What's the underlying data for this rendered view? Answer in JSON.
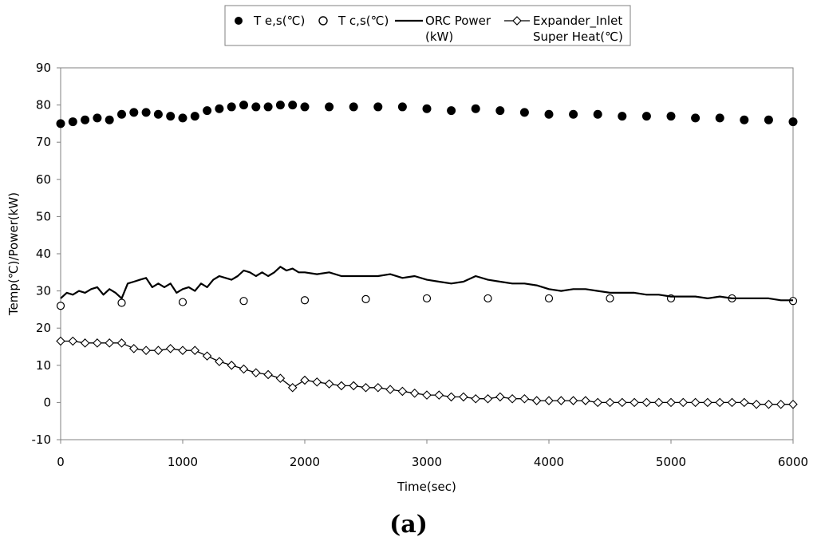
{
  "chart_data": {
    "type": "line",
    "title": "",
    "panel_label": "(a)",
    "xlabel": "Time(sec)",
    "ylabel": "Temp(℃)/Power(kW)",
    "xlim": [
      0,
      6000
    ],
    "ylim": [
      -10,
      90
    ],
    "x_ticks": [
      "0",
      "1000",
      "2000",
      "3000",
      "4000",
      "5000",
      "6000"
    ],
    "y_ticks": [
      "-10",
      "0",
      "10",
      "20",
      "30",
      "40",
      "50",
      "60",
      "70",
      "80",
      "90"
    ],
    "grid": false,
    "legend_position": "top-center",
    "series": [
      {
        "name": "T e,s(℃)",
        "style": "filled-circle-markers",
        "color": "#000000",
        "x": [
          0,
          100,
          200,
          300,
          400,
          500,
          600,
          700,
          800,
          900,
          1000,
          1100,
          1200,
          1300,
          1400,
          1500,
          1600,
          1700,
          1800,
          1900,
          2000,
          2200,
          2400,
          2600,
          2800,
          3000,
          3200,
          3400,
          3600,
          3800,
          4000,
          4200,
          4400,
          4600,
          4800,
          5000,
          5200,
          5400,
          5600,
          5800,
          6000
        ],
        "values": [
          75,
          75.5,
          76,
          76.5,
          76,
          77.5,
          78,
          78,
          77.5,
          77,
          76.5,
          77,
          78.5,
          79,
          79.5,
          80,
          79.5,
          79.5,
          80,
          80,
          79.5,
          79.5,
          79.5,
          79.5,
          79.5,
          79,
          78.5,
          79,
          78.5,
          78,
          77.5,
          77.5,
          77.5,
          77,
          77,
          77,
          76.5,
          76.5,
          76,
          76,
          75.5
        ]
      },
      {
        "name": "T c,s(℃)",
        "style": "open-circle-markers",
        "color": "#000000",
        "x": [
          0,
          500,
          1000,
          1500,
          2000,
          2500,
          3000,
          3500,
          4000,
          4500,
          5000,
          5500,
          6000
        ],
        "values": [
          26,
          26.8,
          27,
          27.3,
          27.5,
          27.8,
          28,
          28,
          28,
          28,
          28,
          28,
          27.3
        ]
      },
      {
        "name": "ORC Power (kW)",
        "style": "line",
        "color": "#000000",
        "x": [
          0,
          50,
          100,
          150,
          200,
          250,
          300,
          350,
          400,
          450,
          500,
          550,
          600,
          650,
          700,
          750,
          800,
          850,
          900,
          950,
          1000,
          1050,
          1100,
          1150,
          1200,
          1250,
          1300,
          1350,
          1400,
          1450,
          1500,
          1550,
          1600,
          1650,
          1700,
          1750,
          1800,
          1850,
          1900,
          1950,
          2000,
          2100,
          2200,
          2300,
          2400,
          2500,
          2600,
          2700,
          2800,
          2900,
          3000,
          3100,
          3200,
          3300,
          3400,
          3500,
          3600,
          3700,
          3800,
          3900,
          4000,
          4100,
          4200,
          4300,
          4400,
          4500,
          4600,
          4700,
          4800,
          4900,
          5000,
          5100,
          5200,
          5300,
          5400,
          5500,
          5600,
          5700,
          5800,
          5900,
          6000
        ],
        "values": [
          28,
          29.5,
          29,
          30,
          29.5,
          30.5,
          31,
          29,
          30.5,
          29.5,
          28,
          32,
          32.5,
          33,
          33.5,
          31,
          32,
          31,
          32,
          29.5,
          30.5,
          31,
          30,
          32,
          31,
          33,
          34,
          33.5,
          33,
          34,
          35.5,
          35,
          34,
          35,
          34,
          35,
          36.5,
          35.5,
          36,
          35,
          35,
          34.5,
          35,
          34,
          34,
          34,
          34,
          34.5,
          33.5,
          34,
          33,
          32.5,
          32,
          32.5,
          34,
          33,
          32.5,
          32,
          32,
          31.5,
          30.5,
          30,
          30.5,
          30.5,
          30,
          29.5,
          29.5,
          29.5,
          29,
          29,
          28.5,
          28.5,
          28.5,
          28,
          28.5,
          28,
          28,
          28,
          28,
          27.5,
          27.5
        ]
      },
      {
        "name": "Expander_Inlet Super Heat(℃)",
        "style": "line-with-open-diamond-markers",
        "color": "#000000",
        "x": [
          0,
          100,
          200,
          300,
          400,
          500,
          600,
          700,
          800,
          900,
          1000,
          1100,
          1200,
          1300,
          1400,
          1500,
          1600,
          1700,
          1800,
          1900,
          2000,
          2100,
          2200,
          2300,
          2400,
          2500,
          2600,
          2700,
          2800,
          2900,
          3000,
          3100,
          3200,
          3300,
          3400,
          3500,
          3600,
          3700,
          3800,
          3900,
          4000,
          4100,
          4200,
          4300,
          4400,
          4500,
          4600,
          4700,
          4800,
          4900,
          5000,
          5100,
          5200,
          5300,
          5400,
          5500,
          5600,
          5700,
          5800,
          5900,
          6000
        ],
        "values": [
          16.5,
          16.5,
          16,
          16,
          16,
          16,
          14.5,
          14,
          14,
          14.5,
          14,
          14,
          12.5,
          11,
          10,
          9,
          8,
          7.5,
          6.5,
          4,
          6,
          5.5,
          5,
          4.5,
          4.5,
          4,
          4,
          3.5,
          3,
          2.5,
          2,
          2,
          1.5,
          1.5,
          1,
          1,
          1.5,
          1,
          1,
          0.5,
          0.5,
          0.5,
          0.5,
          0.5,
          0,
          0,
          0,
          0,
          0,
          0,
          0,
          0,
          0,
          0,
          0,
          0,
          0,
          -0.5,
          -0.5,
          -0.5,
          -0.5
        ]
      }
    ]
  }
}
